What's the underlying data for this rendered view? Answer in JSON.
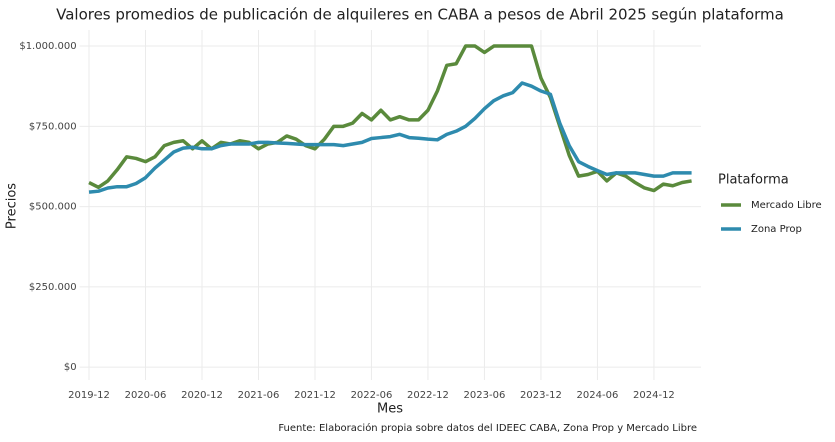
{
  "chart_data": {
    "type": "line",
    "title": "Valores promedios de publicación de alquileres en CABA a pesos de Abril 2025 según plataforma",
    "x_label": "Mes",
    "y_label": "Precios",
    "caption": "Fuente: Elaboración propia sobre datos del IDEEC CABA, Zona Prop y Mercado Libre",
    "legend_title": "Plataforma",
    "legend": "right",
    "grid": true,
    "x": [
      "2019-12",
      "2020-01",
      "2020-02",
      "2020-03",
      "2020-04",
      "2020-05",
      "2020-06",
      "2020-07",
      "2020-08",
      "2020-09",
      "2020-10",
      "2020-11",
      "2020-12",
      "2021-01",
      "2021-02",
      "2021-03",
      "2021-04",
      "2021-05",
      "2021-06",
      "2021-07",
      "2021-08",
      "2021-09",
      "2021-10",
      "2021-11",
      "2021-12",
      "2022-01",
      "2022-02",
      "2022-03",
      "2022-04",
      "2022-05",
      "2022-06",
      "2022-07",
      "2022-08",
      "2022-09",
      "2022-10",
      "2022-11",
      "2022-12",
      "2023-01",
      "2023-02",
      "2023-03",
      "2023-04",
      "2023-05",
      "2023-06",
      "2023-07",
      "2023-08",
      "2023-09",
      "2023-10",
      "2023-11",
      "2023-12",
      "2024-01",
      "2024-02",
      "2024-03",
      "2024-04",
      "2024-05",
      "2024-06",
      "2024-07",
      "2024-08",
      "2024-09",
      "2024-10",
      "2024-11",
      "2024-12",
      "2025-01",
      "2025-02",
      "2025-03",
      "2025-04"
    ],
    "series": [
      {
        "name": "Mercado Libre",
        "color": "#5a8a3c",
        "values": [
          575000,
          560000,
          580000,
          615000,
          655000,
          650000,
          640000,
          655000,
          690000,
          700000,
          705000,
          680000,
          705000,
          680000,
          700000,
          695000,
          705000,
          700000,
          680000,
          695000,
          700000,
          720000,
          710000,
          690000,
          680000,
          710000,
          750000,
          750000,
          760000,
          790000,
          770000,
          800000,
          770000,
          780000,
          770000,
          770000,
          800000,
          860000,
          940000,
          945000,
          1000000,
          1000000,
          980000,
          1000000,
          1000000,
          1000000,
          1000000,
          1000000,
          900000,
          840000,
          750000,
          660000,
          595000,
          600000,
          610000,
          580000,
          605000,
          595000,
          575000,
          558000,
          550000,
          570000,
          565000,
          575000,
          580000
        ]
      },
      {
        "name": "Zona Prop",
        "color": "#2e8bae",
        "values": [
          545000,
          548000,
          558000,
          562000,
          562000,
          572000,
          590000,
          620000,
          645000,
          670000,
          682000,
          685000,
          680000,
          680000,
          690000,
          695000,
          695000,
          695000,
          700000,
          700000,
          698000,
          697000,
          695000,
          693000,
          693000,
          693000,
          693000,
          690000,
          695000,
          700000,
          712000,
          715000,
          718000,
          725000,
          715000,
          713000,
          710000,
          708000,
          725000,
          735000,
          750000,
          775000,
          805000,
          830000,
          845000,
          855000,
          885000,
          875000,
          860000,
          850000,
          760000,
          690000,
          640000,
          625000,
          612000,
          600000,
          605000,
          605000,
          605000,
          600000,
          595000,
          595000,
          605000,
          605000,
          605000
        ]
      }
    ],
    "xlim": [
      "2019-11",
      "2025-05"
    ],
    "xticks": [
      "2019-12",
      "2020-06",
      "2020-12",
      "2021-06",
      "2021-12",
      "2022-06",
      "2022-12",
      "2023-06",
      "2023-12",
      "2024-06",
      "2024-12"
    ],
    "ylim": [
      -40000,
      1050000
    ],
    "yticks": [
      {
        "value": 0,
        "label": "$0"
      },
      {
        "value": 250000,
        "label": "$250.000"
      },
      {
        "value": 500000,
        "label": "$500.000"
      },
      {
        "value": 750000,
        "label": "$750.000"
      },
      {
        "value": 1000000,
        "label": "$1.000.000"
      }
    ]
  }
}
